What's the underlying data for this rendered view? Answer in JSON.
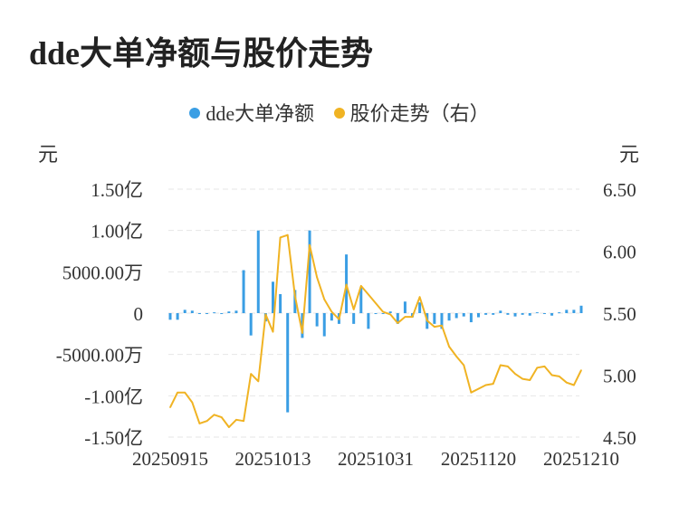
{
  "title": "dde大单净额与股价走势",
  "colors": {
    "bar": "#3a9ee4",
    "line": "#f0b323",
    "grid": "#e6e6e6",
    "axis": "#333333"
  },
  "chart_data": {
    "type": "bar",
    "left_unit": "元",
    "right_unit": "元",
    "legend": [
      {
        "name": "dde大单净额",
        "color": "#3a9ee4"
      },
      {
        "name": "股价走势（右）",
        "color": "#f0b323"
      }
    ],
    "left_ticks": [
      {
        "v": 150000000.0,
        "label": "1.50亿"
      },
      {
        "v": 100000000.0,
        "label": "1.00亿"
      },
      {
        "v": 50000000.0,
        "label": "5000.00万"
      },
      {
        "v": 0,
        "label": "0"
      },
      {
        "v": -50000000.0,
        "label": "-5000.00万"
      },
      {
        "v": -100000000.0,
        "label": "-1.00亿"
      },
      {
        "v": -150000000.0,
        "label": "-1.50亿"
      }
    ],
    "right_ticks": [
      {
        "v": 6.5,
        "label": "6.50"
      },
      {
        "v": 6.0,
        "label": "6.00"
      },
      {
        "v": 5.5,
        "label": "5.50"
      },
      {
        "v": 5.0,
        "label": "5.00"
      },
      {
        "v": 4.5,
        "label": "4.50"
      }
    ],
    "left_range": [
      -150000000,
      150000000
    ],
    "right_range": [
      4.5,
      6.5
    ],
    "x_tick_labels": [
      "20250915",
      "20251013",
      "20251031",
      "20251120",
      "20251210"
    ],
    "x_tick_index": [
      0,
      14,
      28,
      42,
      56
    ],
    "series": [
      {
        "name": "dde大单净额",
        "type": "bar",
        "values": [
          -8000000,
          -8000000,
          4000000,
          3000000,
          -1000000,
          0,
          1000000,
          0,
          2000000,
          3000000,
          52000000,
          -27000000,
          100000000,
          -10000000,
          38000000,
          23000000,
          -120000000,
          28000000,
          -30000000,
          100000000,
          -16000000,
          -28000000,
          -9000000,
          -13000000,
          71000000,
          -13000000,
          31000000,
          -19000000,
          -1000000,
          0,
          2000000,
          -13000000,
          14000000,
          -5000000,
          13000000,
          -19000000,
          -13000000,
          -19000000,
          -9000000,
          -6000000,
          -4000000,
          -11000000,
          -5000000,
          -2000000,
          -2000000,
          3000000,
          -2000000,
          -4000000,
          -2000000,
          -3000000,
          1000000,
          -1000000,
          -3000000,
          1000000,
          4000000,
          4000000,
          9000000
        ]
      },
      {
        "name": "股价走势（右）",
        "type": "line",
        "values": [
          4.74,
          4.86,
          4.86,
          4.78,
          4.61,
          4.63,
          4.68,
          4.66,
          4.58,
          4.64,
          4.63,
          5.01,
          4.95,
          5.49,
          5.35,
          6.11,
          6.13,
          5.64,
          5.34,
          6.05,
          5.79,
          5.61,
          5.51,
          5.45,
          5.73,
          5.53,
          5.72,
          5.65,
          5.58,
          5.51,
          5.49,
          5.42,
          5.47,
          5.47,
          5.63,
          5.44,
          5.39,
          5.4,
          5.23,
          5.15,
          5.08,
          4.86,
          4.89,
          4.92,
          4.93,
          5.08,
          5.07,
          5.01,
          4.97,
          4.96,
          5.06,
          5.07,
          5.0,
          4.99,
          4.94,
          4.92,
          5.04
        ]
      }
    ]
  }
}
